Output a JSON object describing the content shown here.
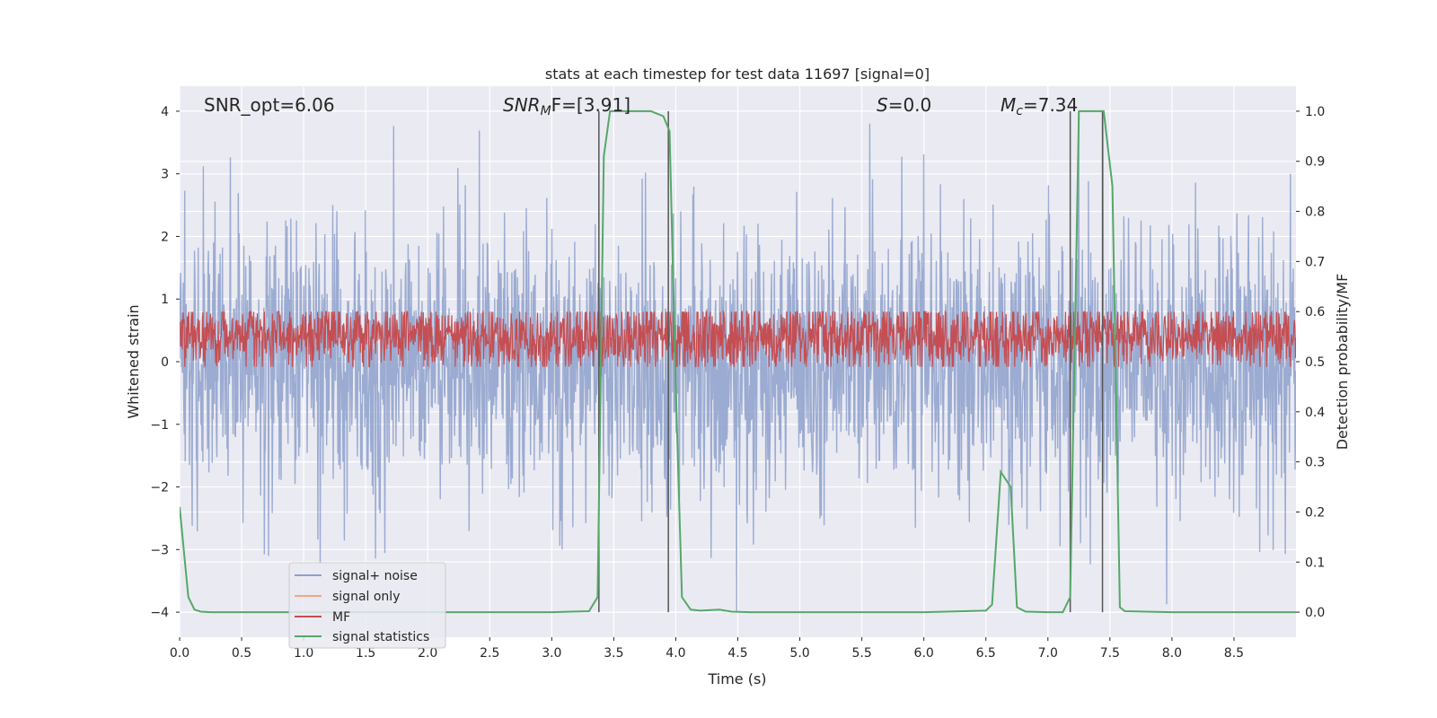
{
  "chart_data": {
    "type": "line",
    "title": "stats at each timestep for test data 11697 [signal=0]",
    "xlabel": "Time (s)",
    "ylabel_left": "Whitened strain",
    "ylabel_right": "Detection probability/MF",
    "xlim": [
      0,
      9.0
    ],
    "ylim_left": [
      -4.4,
      4.4
    ],
    "ylim_right": [
      -0.05,
      1.05
    ],
    "xticks": [
      "0.0",
      "0.5",
      "1.0",
      "1.5",
      "2.0",
      "2.5",
      "3.0",
      "3.5",
      "4.0",
      "4.5",
      "5.0",
      "5.5",
      "6.0",
      "6.5",
      "7.0",
      "7.5",
      "8.0",
      "8.5"
    ],
    "xtick_values": [
      0,
      0.5,
      1.0,
      1.5,
      2.0,
      2.5,
      3.0,
      3.5,
      4.0,
      4.5,
      5.0,
      5.5,
      6.0,
      6.5,
      7.0,
      7.5,
      8.0,
      8.5
    ],
    "yticks_left": [
      "−4",
      "−3",
      "−2",
      "−1",
      "0",
      "1",
      "2",
      "3",
      "4"
    ],
    "ytick_values_left": [
      -4,
      -3,
      -2,
      -1,
      0,
      1,
      2,
      3,
      4
    ],
    "yticks_right": [
      "0.0",
      "0.1",
      "0.2",
      "0.3",
      "0.4",
      "0.5",
      "0.6",
      "0.7",
      "0.8",
      "0.9",
      "1.0"
    ],
    "ytick_values_right": [
      0,
      0.1,
      0.2,
      0.3,
      0.4,
      0.5,
      0.6,
      0.7,
      0.8,
      0.9,
      1.0
    ],
    "grid": true,
    "legend_position": "lower-left",
    "annotations": {
      "snr_opt": "SNR_opt=6.06",
      "snr_mf_main": "SNR",
      "snr_mf_sub": "M",
      "snr_mf_rest": "F=[3.91]",
      "s_main": "S",
      "s_rest": "=0.0",
      "mc_main": "M",
      "mc_sub": "c",
      "mc_rest": "=7.34"
    },
    "series": [
      {
        "name": "signal+ noise",
        "color": "#8da0cb",
        "description_range": [
          -3.3,
          4.0
        ]
      },
      {
        "name": "signal only",
        "color": "#f4a582",
        "values": []
      },
      {
        "name": "MF",
        "color": "#c44e52",
        "description_range": [
          0.0,
          0.8
        ]
      },
      {
        "name": "signal statistics",
        "color": "#55a868",
        "x": [
          0.0,
          0.07,
          0.12,
          0.17,
          0.25,
          0.4,
          1.0,
          2.0,
          3.0,
          3.3,
          3.37,
          3.42,
          3.47,
          3.53,
          3.6,
          3.7,
          3.8,
          3.9,
          3.95,
          4.0,
          4.05,
          4.12,
          4.2,
          4.35,
          4.45,
          4.6,
          5.0,
          6.0,
          6.5,
          6.55,
          6.62,
          6.7,
          6.75,
          6.82,
          7.0,
          7.12,
          7.18,
          7.25,
          7.35,
          7.45,
          7.52,
          7.58,
          7.62,
          8.0,
          8.5,
          9.0
        ],
        "values": [
          0.21,
          0.03,
          0.005,
          0.001,
          0.0,
          0.0,
          0.0,
          0.0,
          0.0,
          0.002,
          0.03,
          0.91,
          1.0,
          1.0,
          1.0,
          1.0,
          1.0,
          0.99,
          0.96,
          0.45,
          0.03,
          0.005,
          0.003,
          0.005,
          0.001,
          0.0,
          0.0,
          0.0,
          0.003,
          0.015,
          0.28,
          0.25,
          0.01,
          0.001,
          0.0,
          0.0,
          0.03,
          1.0,
          1.0,
          1.0,
          0.85,
          0.01,
          0.002,
          0.0,
          0.0,
          0.0
        ]
      }
    ],
    "vertical_markers_s": [
      3.38,
      3.94,
      7.18,
      7.44
    ]
  }
}
